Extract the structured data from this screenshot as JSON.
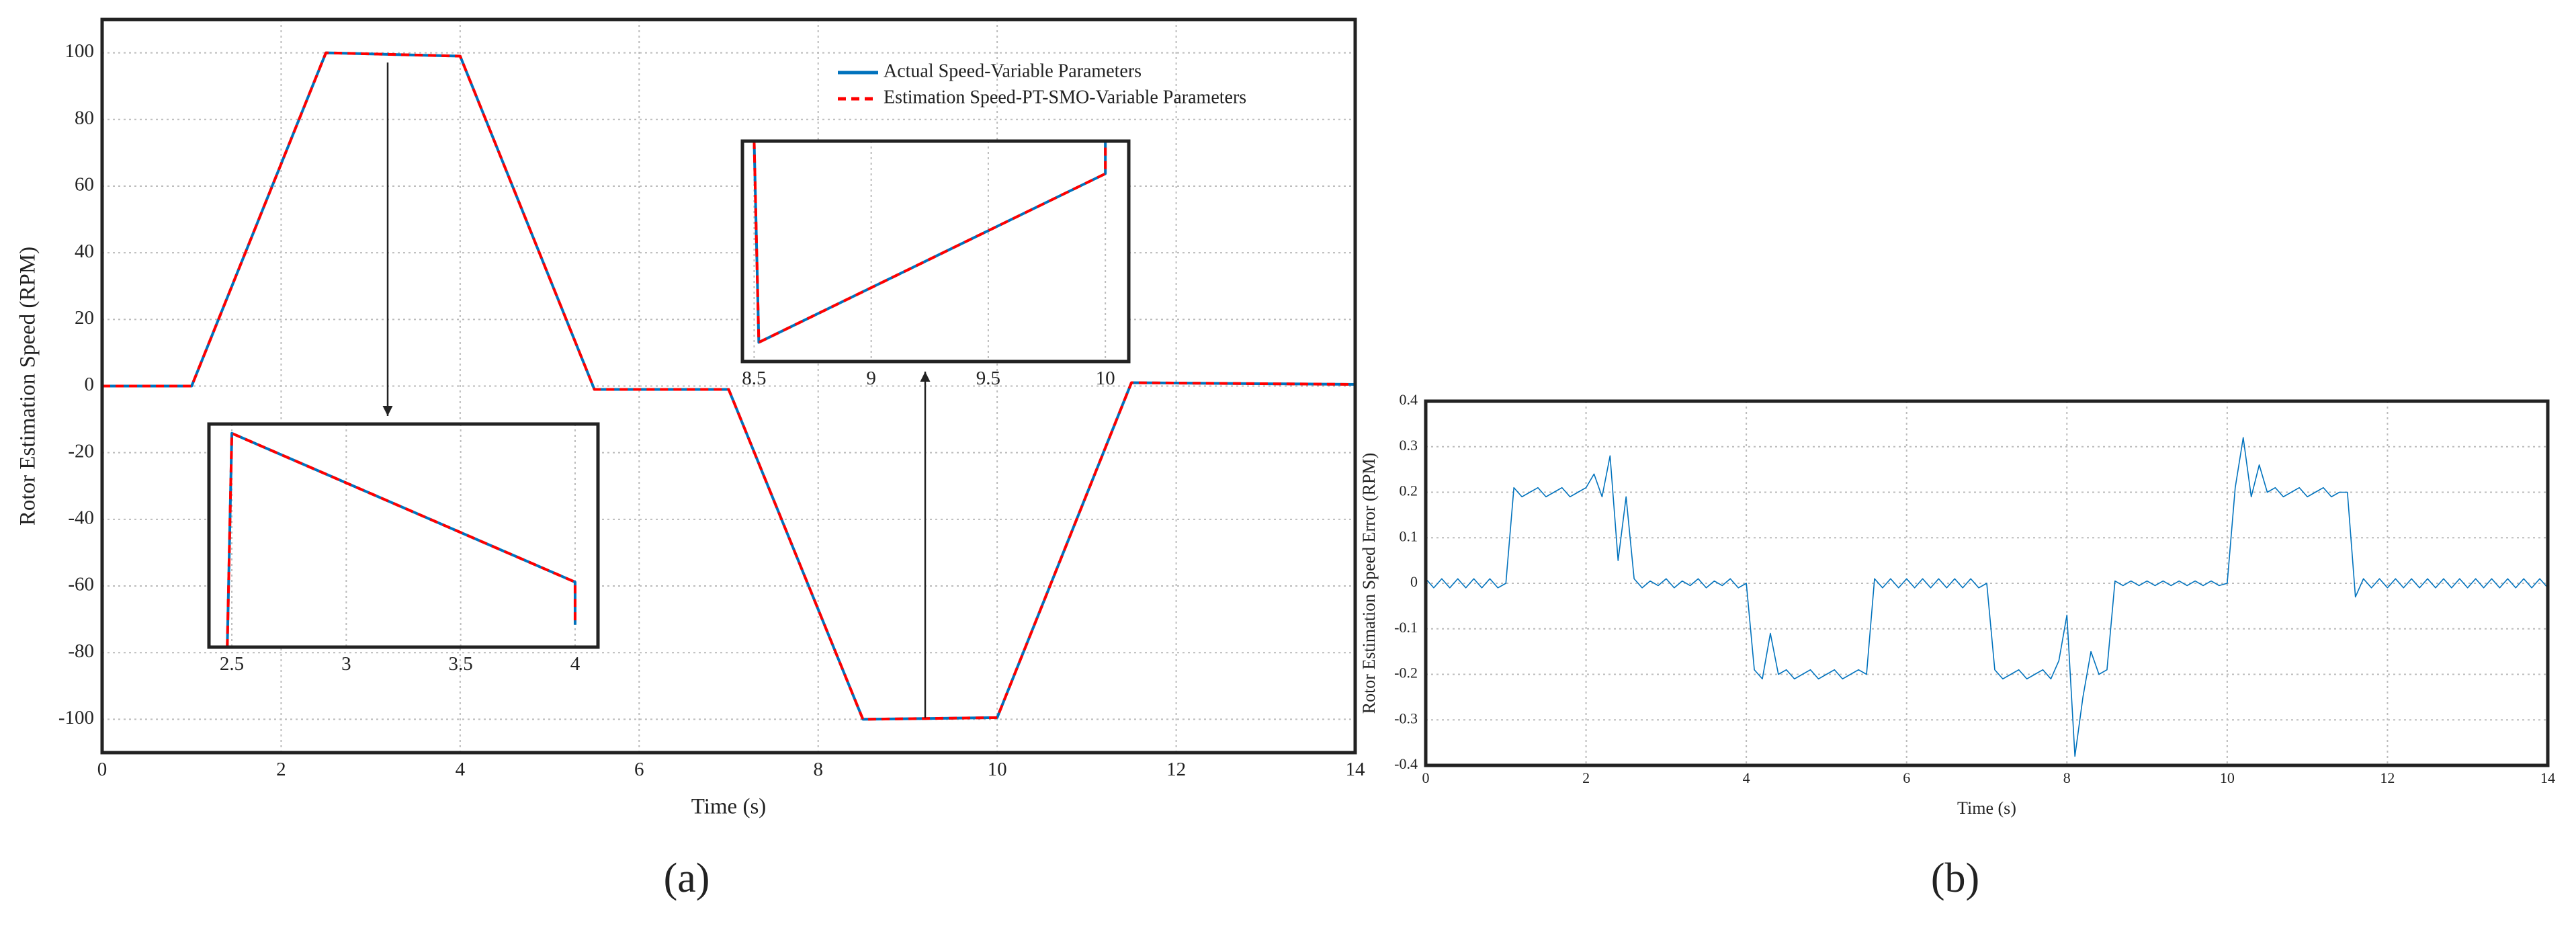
{
  "chart_data": [
    {
      "type": "line",
      "panel_label": "(a)",
      "xlabel": "Time (s)",
      "ylabel": "Rotor Estimation Speed (RPM)",
      "x": [
        0,
        1,
        2.5,
        4,
        5.5,
        7,
        8.5,
        10,
        11.5,
        14
      ],
      "series": [
        {
          "name": "Actual Speed-Variable Parameters",
          "color": "#0072bd",
          "dash": false,
          "values": [
            0,
            0,
            100,
            99,
            -1,
            -1,
            -100,
            -99.5,
            1,
            0.5
          ]
        },
        {
          "name": "Estimation Speed-PT-SMO-Variable Parameters",
          "color": "#ff0000",
          "dash": true,
          "values": [
            0,
            0,
            100,
            99,
            -1,
            -1,
            -100,
            -99.5,
            1,
            0.5
          ]
        }
      ],
      "xlim": [
        0,
        14
      ],
      "xticks": [
        0,
        2,
        4,
        6,
        8,
        10,
        12,
        14
      ],
      "ylim": [
        -110,
        110
      ],
      "yticks": [
        -100,
        -80,
        -60,
        -40,
        -20,
        0,
        20,
        40,
        60,
        80,
        100
      ],
      "grid": true,
      "legend": "upper right"
    },
    {
      "type": "line",
      "x": [
        2.48,
        2.5,
        4.0,
        4.0
      ],
      "series": [
        {
          "color": "#0072bd",
          "dash": false,
          "values": [
            98.85,
            100,
            99.2,
            98.97
          ]
        },
        {
          "color": "#ff0000",
          "dash": true,
          "values": [
            98.85,
            100,
            99.2,
            98.97
          ]
        }
      ],
      "xlim": [
        2.4,
        4.1
      ],
      "xticks": [
        2.5,
        3,
        3.5,
        4
      ],
      "ylim": [
        98.85,
        100.05
      ],
      "grid": true
    },
    {
      "type": "line",
      "x": [
        8.5,
        8.52,
        10.0,
        10.0
      ],
      "series": [
        {
          "color": "#0072bd",
          "dash": false,
          "values": [
            -98.9,
            -99.95,
            -99.07,
            -98.9
          ]
        },
        {
          "color": "#ff0000",
          "dash": true,
          "values": [
            -98.9,
            -99.95,
            -99.07,
            -98.9
          ]
        }
      ],
      "xlim": [
        8.45,
        10.1
      ],
      "xticks": [
        8.5,
        9,
        9.5,
        10
      ],
      "ylim": [
        -100.05,
        -98.9
      ],
      "grid": true
    },
    {
      "type": "line",
      "panel_label": "(b)",
      "xlabel": "Time (s)",
      "ylabel": "Rotor Estimation Speed Error (RPM)",
      "x": [
        0,
        0.1,
        0.2,
        0.3,
        0.4,
        0.5,
        0.6,
        0.7,
        0.8,
        0.9,
        1,
        1.1,
        1.2,
        1.3,
        1.4,
        1.5,
        1.6,
        1.7,
        1.8,
        1.9,
        2,
        2.1,
        2.2,
        2.3,
        2.4,
        2.5,
        2.6,
        2.7,
        2.8,
        2.9,
        3,
        3.1,
        3.2,
        3.3,
        3.4,
        3.5,
        3.6,
        3.7,
        3.8,
        3.9,
        4,
        4.1,
        4.2,
        4.3,
        4.4,
        4.5,
        4.6,
        4.7,
        4.8,
        4.9,
        5,
        5.1,
        5.2,
        5.3,
        5.4,
        5.5,
        5.6,
        5.7,
        5.8,
        5.9,
        6,
        6.1,
        6.2,
        6.3,
        6.4,
        6.5,
        6.6,
        6.7,
        6.8,
        6.9,
        7,
        7.1,
        7.2,
        7.3,
        7.4,
        7.5,
        7.6,
        7.7,
        7.8,
        7.9,
        8,
        8.1,
        8.2,
        8.3,
        8.4,
        8.5,
        8.6,
        8.7,
        8.8,
        8.9,
        9,
        9.1,
        9.2,
        9.3,
        9.4,
        9.5,
        9.6,
        9.7,
        9.8,
        9.9,
        10,
        10.1,
        10.2,
        10.3,
        10.4,
        10.5,
        10.6,
        10.7,
        10.8,
        10.9,
        11,
        11.1,
        11.2,
        11.3,
        11.4,
        11.5,
        11.6,
        11.7,
        11.8,
        11.9,
        12,
        12.1,
        12.2,
        12.3,
        12.4,
        12.5,
        12.6,
        12.7,
        12.8,
        12.9,
        13,
        13.1,
        13.2,
        13.3,
        13.4,
        13.5,
        13.6,
        13.7,
        13.8,
        13.9,
        14
      ],
      "series": [
        {
          "color": "#0072bd",
          "dash": false,
          "values": [
            0.01,
            -0.01,
            0.01,
            -0.01,
            0.01,
            -0.01,
            0.01,
            -0.01,
            0.01,
            -0.01,
            0,
            0.21,
            0.19,
            0.2,
            0.21,
            0.19,
            0.2,
            0.21,
            0.19,
            0.2,
            0.21,
            0.24,
            0.19,
            0.28,
            0.05,
            0.19,
            0.01,
            -0.01,
            0.005,
            -0.005,
            0.01,
            -0.01,
            0.005,
            -0.005,
            0.01,
            -0.01,
            0.005,
            -0.005,
            0.01,
            -0.01,
            0,
            -0.19,
            -0.21,
            -0.11,
            -0.2,
            -0.19,
            -0.21,
            -0.2,
            -0.19,
            -0.21,
            -0.2,
            -0.19,
            -0.21,
            -0.2,
            -0.19,
            -0.2,
            0.01,
            -0.01,
            0.01,
            -0.01,
            0.01,
            -0.01,
            0.01,
            -0.01,
            0.01,
            -0.01,
            0.01,
            -0.01,
            0.01,
            -0.01,
            0,
            -0.19,
            -0.21,
            -0.2,
            -0.19,
            -0.21,
            -0.2,
            -0.19,
            -0.21,
            -0.17,
            -0.07,
            -0.38,
            -0.25,
            -0.15,
            -0.2,
            -0.19,
            0.005,
            -0.005,
            0.005,
            -0.005,
            0.005,
            -0.005,
            0.005,
            -0.005,
            0.005,
            -0.005,
            0.005,
            -0.005,
            0.005,
            -0.005,
            0,
            0.21,
            0.32,
            0.19,
            0.26,
            0.2,
            0.21,
            0.19,
            0.2,
            0.21,
            0.19,
            0.2,
            0.21,
            0.19,
            0.2,
            0.2,
            -0.03,
            0.01,
            -0.01,
            0.01,
            -0.01,
            0.01,
            -0.01,
            0.01,
            -0.01,
            0.01,
            -0.01,
            0.01,
            -0.01,
            0.01,
            -0.01,
            0.01,
            -0.01,
            0.01,
            -0.01,
            0.01,
            -0.01,
            0.01,
            -0.01,
            0.01,
            -0.01
          ]
        }
      ],
      "xlim": [
        0,
        14
      ],
      "xticks": [
        0,
        2,
        4,
        6,
        8,
        10,
        12,
        14
      ],
      "ylim": [
        -0.4,
        0.4
      ],
      "yticks": [
        -0.4,
        -0.3,
        -0.2,
        -0.1,
        0,
        0.1,
        0.2,
        0.3,
        0.4
      ],
      "grid": true
    }
  ]
}
